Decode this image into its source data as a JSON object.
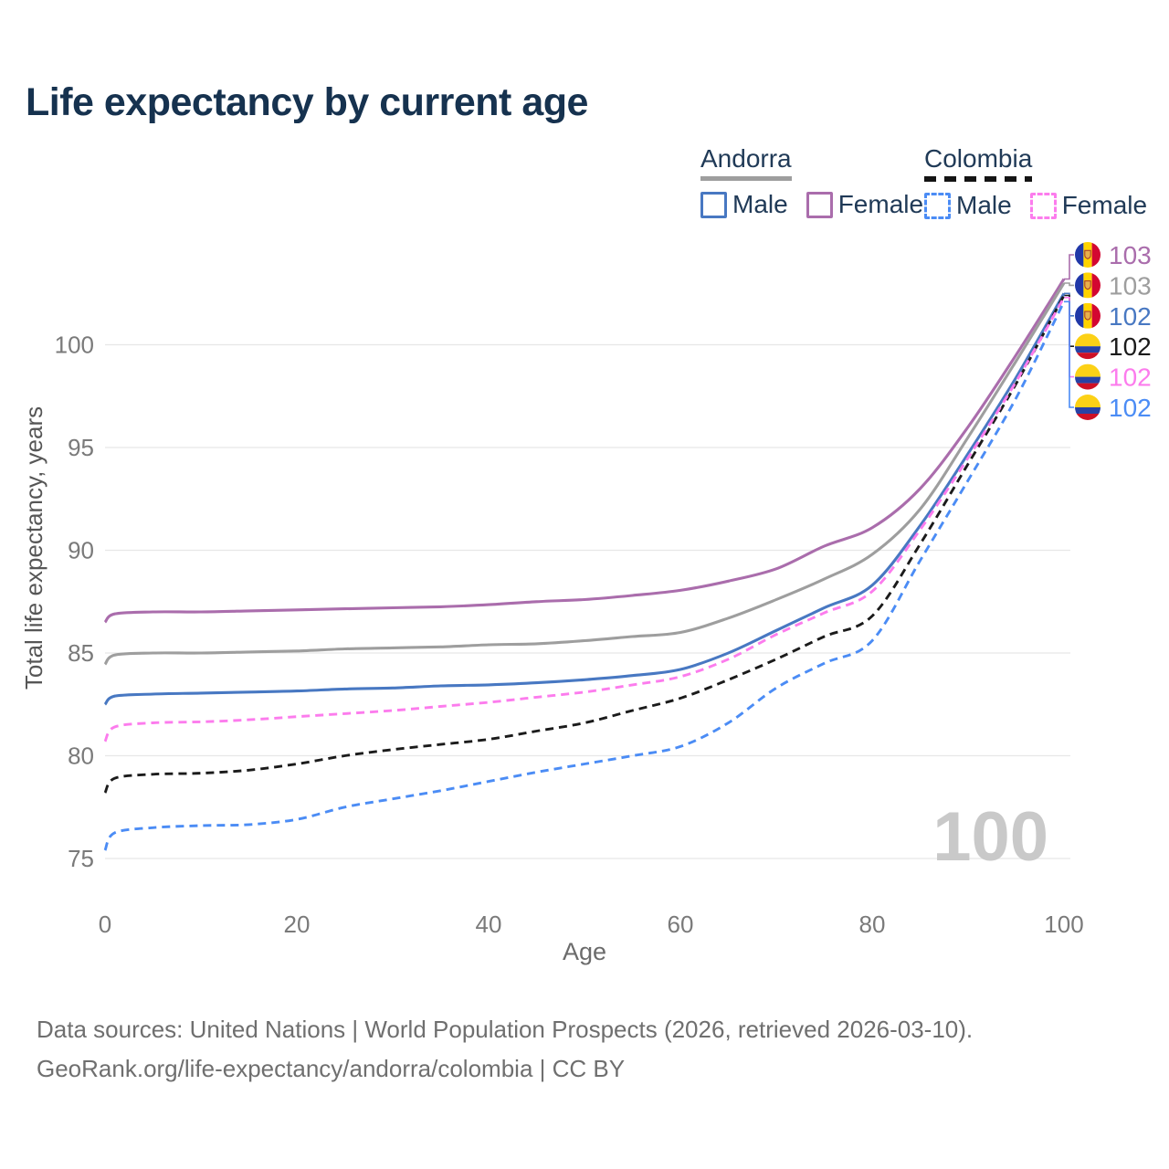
{
  "title": "Life expectancy by current age",
  "legend": {
    "groups": [
      {
        "label": "Andorra",
        "underline": "solid",
        "underline_color": "#9e9e9e",
        "items": [
          {
            "label": "Male",
            "color": "#4878c2",
            "dashed": false
          },
          {
            "label": "Female",
            "color": "#aa6dac",
            "dashed": false
          }
        ]
      },
      {
        "label": "Colombia",
        "underline": "dashed",
        "underline_color": "#141414",
        "items": [
          {
            "label": "Male",
            "color": "#4b8cf5",
            "dashed": true
          },
          {
            "label": "Female",
            "color": "#fc7ced",
            "dashed": true
          }
        ]
      }
    ]
  },
  "watermark": "100",
  "footer": {
    "line1": "Data sources: United Nations | World Population Prospects (2026, retrieved 2026-03-10).",
    "line2": "GeoRank.org/life-expectancy/andorra/colombia | CC BY"
  },
  "flags": {
    "andorra": {
      "blue": "#2038a8",
      "yellow": "#ffd400",
      "red": "#d30731",
      "crest": "#e8b04b",
      "crest_border": "#a3342c"
    },
    "colombia": {
      "yellow": "#fcd116",
      "blue": "#2742a5",
      "red": "#ce1126"
    }
  },
  "chart_data": {
    "type": "line",
    "title": "Life expectancy by current age",
    "xlabel": "Age",
    "ylabel": "Total life expectancy, years",
    "xlim": [
      0,
      100
    ],
    "ylim": [
      75,
      100
    ],
    "xticks": [
      0,
      20,
      40,
      60,
      80,
      100
    ],
    "yticks": [
      75,
      80,
      85,
      90,
      95,
      100
    ],
    "grid": true,
    "legend_position": "top-right",
    "x": [
      0,
      1,
      5,
      10,
      15,
      20,
      25,
      30,
      35,
      40,
      45,
      50,
      55,
      60,
      65,
      70,
      75,
      80,
      85,
      90,
      95,
      100
    ],
    "series": [
      {
        "name": "Andorra Female",
        "country": "Andorra",
        "sex": "Female",
        "style": "solid",
        "color": "#aa6dac",
        "flag": "andorra",
        "end_label": "103",
        "values": [
          86.5,
          86.9,
          87.0,
          87.0,
          87.05,
          87.1,
          87.15,
          87.2,
          87.25,
          87.35,
          87.5,
          87.6,
          87.8,
          88.05,
          88.5,
          89.1,
          90.2,
          91.1,
          93.0,
          96.0,
          99.5,
          103.2
        ]
      },
      {
        "name": "Andorra Both sexes",
        "country": "Andorra",
        "sex": "Both",
        "style": "solid",
        "color": "#9e9e9e",
        "flag": "andorra",
        "end_label": "103",
        "values": [
          84.45,
          84.9,
          85.0,
          85.0,
          85.05,
          85.1,
          85.2,
          85.25,
          85.3,
          85.4,
          85.45,
          85.6,
          85.8,
          86.0,
          86.7,
          87.6,
          88.6,
          89.8,
          92.0,
          95.5,
          99.2,
          103.0
        ]
      },
      {
        "name": "Andorra Male",
        "country": "Andorra",
        "sex": "Male",
        "style": "solid",
        "color": "#4878c2",
        "flag": "andorra",
        "end_label": "102",
        "values": [
          82.5,
          82.9,
          83.0,
          83.05,
          83.1,
          83.15,
          83.25,
          83.3,
          83.4,
          83.45,
          83.55,
          83.7,
          83.9,
          84.2,
          85.0,
          86.1,
          87.2,
          88.3,
          91.2,
          94.7,
          98.4,
          102.5
        ]
      },
      {
        "name": "Colombia Both sexes",
        "country": "Colombia",
        "sex": "Both",
        "style": "dashed",
        "color": "#1b1b1b",
        "flag": "colombia",
        "end_label": "102",
        "values": [
          78.2,
          78.9,
          79.1,
          79.15,
          79.3,
          79.6,
          80.0,
          80.3,
          80.55,
          80.8,
          81.2,
          81.6,
          82.2,
          82.8,
          83.7,
          84.7,
          85.8,
          86.8,
          90.3,
          94.2,
          98.1,
          102.4
        ]
      },
      {
        "name": "Colombia Female",
        "country": "Colombia",
        "sex": "Female",
        "style": "dashed",
        "color": "#fc7ced",
        "flag": "colombia",
        "end_label": "102",
        "values": [
          80.7,
          81.4,
          81.6,
          81.65,
          81.75,
          81.9,
          82.05,
          82.2,
          82.4,
          82.6,
          82.85,
          83.1,
          83.45,
          83.85,
          84.7,
          85.9,
          86.95,
          88.0,
          91.0,
          94.5,
          98.2,
          102.3
        ]
      },
      {
        "name": "Colombia Male",
        "country": "Colombia",
        "sex": "Male",
        "style": "dashed",
        "color": "#4b8cf5",
        "flag": "colombia",
        "end_label": "102",
        "values": [
          75.4,
          76.25,
          76.5,
          76.6,
          76.65,
          76.9,
          77.5,
          77.9,
          78.3,
          78.75,
          79.2,
          79.6,
          80.0,
          80.45,
          81.6,
          83.3,
          84.5,
          85.6,
          89.5,
          93.4,
          97.4,
          102.1
        ]
      }
    ]
  }
}
